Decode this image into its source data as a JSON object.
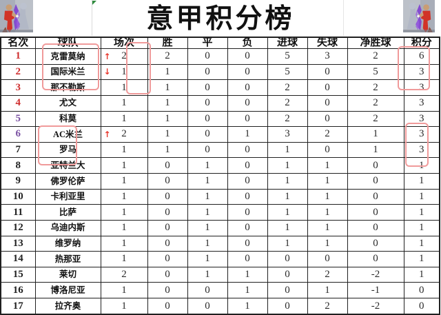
{
  "title": "意甲积分榜",
  "colors": {
    "rank_top": "#cf2e2e",
    "rank_mid": "#7b52a3",
    "text": "#2a2a2a",
    "grid": "#1f1f1f",
    "highlight_box": "#f09a9a",
    "arrow": "#e8372c",
    "flag_green": "#2e8b3d"
  },
  "icons": {
    "up_arrow": "↑",
    "down_arrow": "↓",
    "corner_left": "athlete-photo",
    "corner_right": "athlete-photo"
  },
  "table": {
    "headers": [
      "名次",
      "球队",
      "场次",
      "胜",
      "平",
      "负",
      "进球",
      "失球",
      "净胜球",
      "积分"
    ],
    "rows": [
      {
        "rank": "1",
        "team": "克雷莫纳",
        "arrow": "up",
        "played": "2",
        "win": "2",
        "draw": "0",
        "loss": "0",
        "gf": "5",
        "ga": "3",
        "gd": "2",
        "pts": "6",
        "rank_color": "red"
      },
      {
        "rank": "2",
        "team": "国际米兰",
        "arrow": "down",
        "played": "1",
        "win": "1",
        "draw": "0",
        "loss": "0",
        "gf": "5",
        "ga": "0",
        "gd": "5",
        "pts": "3",
        "rank_color": "red"
      },
      {
        "rank": "3",
        "team": "那不勒斯",
        "arrow": "",
        "played": "1",
        "win": "1",
        "draw": "0",
        "loss": "0",
        "gf": "2",
        "ga": "0",
        "gd": "2",
        "pts": "3",
        "rank_color": "red"
      },
      {
        "rank": "4",
        "team": "尤文",
        "arrow": "",
        "played": "1",
        "win": "1",
        "draw": "0",
        "loss": "0",
        "gf": "2",
        "ga": "0",
        "gd": "2",
        "pts": "3",
        "rank_color": "red"
      },
      {
        "rank": "5",
        "team": "科莫",
        "arrow": "",
        "played": "1",
        "win": "1",
        "draw": "0",
        "loss": "0",
        "gf": "2",
        "ga": "0",
        "gd": "2",
        "pts": "3",
        "rank_color": "purple"
      },
      {
        "rank": "6",
        "team": "AC米兰",
        "arrow": "up",
        "played": "2",
        "win": "1",
        "draw": "0",
        "loss": "1",
        "gf": "3",
        "ga": "2",
        "gd": "1",
        "pts": "3",
        "rank_color": "purple"
      },
      {
        "rank": "7",
        "team": "罗马",
        "arrow": "",
        "played": "1",
        "win": "1",
        "draw": "0",
        "loss": "0",
        "gf": "1",
        "ga": "0",
        "gd": "1",
        "pts": "3",
        "rank_color": "black"
      },
      {
        "rank": "8",
        "team": "亚特兰大",
        "arrow": "",
        "played": "1",
        "win": "0",
        "draw": "1",
        "loss": "0",
        "gf": "1",
        "ga": "1",
        "gd": "0",
        "pts": "1",
        "rank_color": "black"
      },
      {
        "rank": "9",
        "team": "佛罗伦萨",
        "arrow": "",
        "played": "1",
        "win": "0",
        "draw": "1",
        "loss": "0",
        "gf": "1",
        "ga": "1",
        "gd": "0",
        "pts": "1",
        "rank_color": "black"
      },
      {
        "rank": "10",
        "team": "卡利亚里",
        "arrow": "",
        "played": "1",
        "win": "0",
        "draw": "1",
        "loss": "0",
        "gf": "1",
        "ga": "1",
        "gd": "0",
        "pts": "1",
        "rank_color": "black"
      },
      {
        "rank": "11",
        "team": "比萨",
        "arrow": "",
        "played": "1",
        "win": "0",
        "draw": "1",
        "loss": "0",
        "gf": "1",
        "ga": "1",
        "gd": "0",
        "pts": "1",
        "rank_color": "black"
      },
      {
        "rank": "12",
        "team": "乌迪内斯",
        "arrow": "",
        "played": "1",
        "win": "0",
        "draw": "1",
        "loss": "0",
        "gf": "1",
        "ga": "1",
        "gd": "0",
        "pts": "1",
        "rank_color": "black"
      },
      {
        "rank": "13",
        "team": "维罗纳",
        "arrow": "",
        "played": "1",
        "win": "0",
        "draw": "1",
        "loss": "0",
        "gf": "1",
        "ga": "1",
        "gd": "0",
        "pts": "1",
        "rank_color": "black"
      },
      {
        "rank": "14",
        "team": "热那亚",
        "arrow": "",
        "played": "1",
        "win": "0",
        "draw": "1",
        "loss": "0",
        "gf": "0",
        "ga": "0",
        "gd": "0",
        "pts": "1",
        "rank_color": "black"
      },
      {
        "rank": "15",
        "team": "莱切",
        "arrow": "",
        "played": "2",
        "win": "0",
        "draw": "1",
        "loss": "1",
        "gf": "0",
        "ga": "2",
        "gd": "-2",
        "pts": "1",
        "rank_color": "black"
      },
      {
        "rank": "16",
        "team": "博洛尼亚",
        "arrow": "",
        "played": "1",
        "win": "0",
        "draw": "0",
        "loss": "1",
        "gf": "0",
        "ga": "1",
        "gd": "-1",
        "pts": "0",
        "rank_color": "black"
      },
      {
        "rank": "17",
        "team": "拉齐奥",
        "arrow": "",
        "played": "1",
        "win": "0",
        "draw": "0",
        "loss": "1",
        "gf": "0",
        "ga": "2",
        "gd": "-2",
        "pts": "0",
        "rank_color": "black"
      }
    ]
  },
  "annotations": {
    "highlighted_regions": [
      "team-names-rows-1-2",
      "played-values-rows-1-2",
      "points-values-rows-1-2",
      "team-names-rows-6-7",
      "points-values-rows-6-7"
    ]
  }
}
